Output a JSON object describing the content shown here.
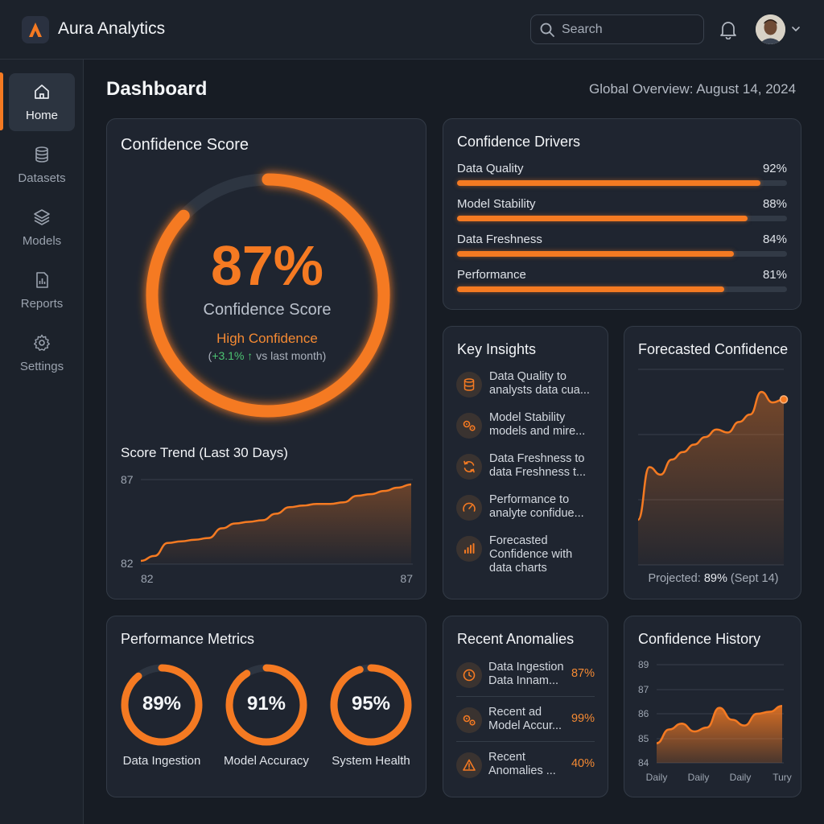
{
  "app": {
    "title": "Aura Analytics",
    "logo_letter": "A"
  },
  "search": {
    "placeholder": "Search"
  },
  "header_icons": [
    "search-icon",
    "bell-icon",
    "chevron-down-icon"
  ],
  "sidebar": {
    "items": [
      {
        "label": "Home",
        "icon": "home-icon",
        "active": true
      },
      {
        "label": "Datasets",
        "icon": "database-icon",
        "active": false
      },
      {
        "label": "Models",
        "icon": "layers-icon",
        "active": false
      },
      {
        "label": "Reports",
        "icon": "report-icon",
        "active": false
      },
      {
        "label": "Settings",
        "icon": "gear-icon",
        "active": false
      }
    ]
  },
  "page": {
    "title": "Dashboard",
    "subtitle": "Global Overview: August 14, 2024"
  },
  "confidence_score": {
    "title": "Confidence Score",
    "value": "87%",
    "value_fraction": 0.87,
    "label": "Confidence Score",
    "level": "High Confidence",
    "delta_prefix": "(",
    "delta": "+3.1% ↑",
    "delta_suffix": " vs last month)",
    "trend_title": "Score Trend (Last 30 Days)"
  },
  "drivers": {
    "title": "Confidence Drivers",
    "items": [
      {
        "name": "Data Quality",
        "value": "92%",
        "fraction": 0.92
      },
      {
        "name": "Model Stability",
        "value": "88%",
        "fraction": 0.88
      },
      {
        "name": "Data Freshness",
        "value": "84%",
        "fraction": 0.84
      },
      {
        "name": "Performance",
        "value": "81%",
        "fraction": 0.81
      }
    ]
  },
  "insights": {
    "title": "Key Insights",
    "items": [
      {
        "icon": "database-icon",
        "text": "Data Quality to analysts data cua..."
      },
      {
        "icon": "gears-icon",
        "text": "Model Stability models and mire..."
      },
      {
        "icon": "refresh-icon",
        "text": "Data Freshness to data Freshness t..."
      },
      {
        "icon": "gauge-icon",
        "text": "Performance to analyte confidue..."
      },
      {
        "icon": "bar-chart-icon",
        "text": "Forecasted Confidence with data charts"
      }
    ]
  },
  "forecast": {
    "title": "Forecasted Confidence",
    "note_prefix": "Projected: ",
    "note_value": "89%",
    "note_suffix": " (Sept 14)"
  },
  "performance": {
    "title": "Performance Metrics",
    "items": [
      {
        "label": "Data Ingestion",
        "value": "89%",
        "fraction": 0.89
      },
      {
        "label": "Model Accuracy",
        "value": "91%",
        "fraction": 0.91
      },
      {
        "label": "System Health",
        "value": "95%",
        "fraction": 0.95
      }
    ]
  },
  "anomalies": {
    "title": "Recent Anomalies",
    "items": [
      {
        "icon": "clock-icon",
        "text": "Data Ingestion Data Innam...",
        "value": "87%"
      },
      {
        "icon": "gears-icon",
        "text": "Recent ad Model Accur...",
        "value": "99%"
      },
      {
        "icon": "warning-icon",
        "text": "Recent Anomalies ...",
        "value": "40%"
      }
    ]
  },
  "history": {
    "title": "Confidence History"
  },
  "colors": {
    "accent": "#f57a22",
    "positive": "#4cc472",
    "background": "#171c24",
    "card": "#1f2530"
  },
  "chart_data": [
    {
      "type": "area",
      "title": "Score Trend (Last 30 Days)",
      "y_ticks": [
        "87",
        "82"
      ],
      "x_ticks": [
        "82",
        "87"
      ],
      "ylim": [
        82,
        87
      ],
      "x": [
        0,
        1,
        2,
        3,
        4,
        5,
        6,
        7,
        8,
        9,
        10,
        11,
        12,
        13,
        14,
        15,
        16,
        17,
        18,
        19,
        20
      ],
      "values": [
        82.2,
        82.5,
        83.3,
        83.4,
        83.5,
        83.6,
        84.2,
        84.5,
        84.6,
        84.7,
        85.1,
        85.5,
        85.6,
        85.7,
        85.7,
        85.8,
        86.2,
        86.3,
        86.5,
        86.7,
        86.9
      ]
    },
    {
      "type": "area",
      "title": "Forecasted Confidence",
      "values": [
        81.0,
        84.5,
        84.0,
        85.0,
        85.5,
        86.0,
        86.5,
        87.0,
        86.8,
        87.5,
        88.0,
        89.5,
        88.8,
        89.0
      ],
      "ylim": [
        78,
        91
      ],
      "grid": true
    },
    {
      "type": "area",
      "title": "Confidence History",
      "y_ticks": [
        "89",
        "87",
        "86",
        "85",
        "84"
      ],
      "x_ticks": [
        "Daily",
        "Daily",
        "Daily",
        "Tury"
      ],
      "values": [
        85.0,
        85.7,
        86.0,
        85.6,
        85.8,
        86.8,
        86.2,
        85.9,
        86.5,
        86.6,
        86.9
      ],
      "ylim": [
        84,
        89
      ],
      "grid": true
    }
  ]
}
